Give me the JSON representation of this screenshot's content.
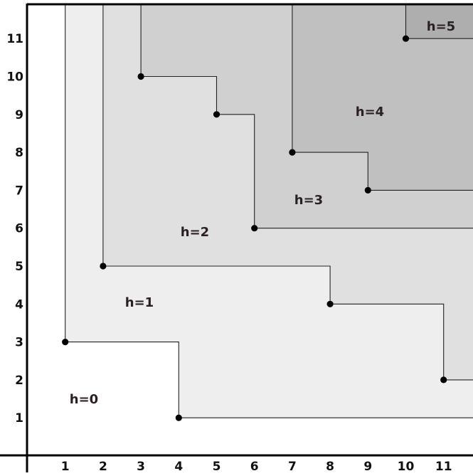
{
  "x_ticks": [
    "1",
    "2",
    "3",
    "4",
    "5",
    "6",
    "7",
    "8",
    "9",
    "10",
    "11"
  ],
  "y_ticks": [
    "1",
    "2",
    "3",
    "4",
    "5",
    "6",
    "7",
    "8",
    "9",
    "10",
    "11"
  ],
  "regions": [
    {
      "label": "h=0",
      "fill": "#ffffff",
      "corners": []
    },
    {
      "label": "h=1",
      "fill": "#eeeeee",
      "corners": [
        [
          1,
          3
        ],
        [
          4,
          1
        ]
      ]
    },
    {
      "label": "h=2",
      "fill": "#e0e0e0",
      "corners": [
        [
          2,
          5
        ],
        [
          8,
          4
        ],
        [
          11,
          2
        ]
      ]
    },
    {
      "label": "h=3",
      "fill": "#d0d0d0",
      "corners": [
        [
          3,
          10
        ],
        [
          5,
          9
        ],
        [
          6,
          6
        ]
      ]
    },
    {
      "label": "h=4",
      "fill": "#c0c0c0",
      "corners": [
        [
          7,
          8
        ],
        [
          9,
          7
        ]
      ]
    },
    {
      "label": "h=5",
      "fill": "#aeaeae",
      "corners": [
        [
          10,
          11
        ]
      ]
    }
  ],
  "colors": {
    "axis": "#000000",
    "boundary": "#222222",
    "point": "#000000"
  }
}
